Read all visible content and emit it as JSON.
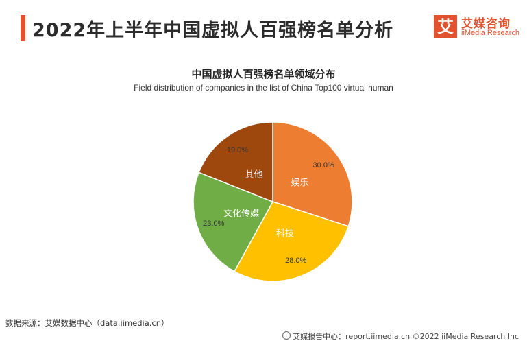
{
  "header": {
    "title": "2022年上半年中国虚拟人百强榜名单分析",
    "accent_color": "#e2522f"
  },
  "logo": {
    "mark": "艾",
    "name_cn": "艾媒咨询",
    "name_en": "iiMedia Research"
  },
  "chart_data": {
    "type": "pie",
    "title": "中国虚拟人百强榜名单领域分布",
    "subtitle": "Field distribution of companies in the list of China Top100 virtual human",
    "slices": [
      {
        "label": "娱乐",
        "value": 30.0,
        "value_label": "30.0%",
        "color": "#ed7d31"
      },
      {
        "label": "科技",
        "value": 28.0,
        "value_label": "28.0%",
        "color": "#ffc000"
      },
      {
        "label": "文化传媒",
        "value": 23.0,
        "value_label": "23.0%",
        "color": "#70ad47"
      },
      {
        "label": "其他",
        "value": 19.0,
        "value_label": "19.0%",
        "color": "#9e480e"
      }
    ],
    "start_angle": "12 o'clock",
    "direction": "clockwise"
  },
  "source": {
    "text": "数据来源：艾媒数据中心（data.iimedia.cn）"
  },
  "footer": {
    "text": "艾媒报告中心：report.iimedia.cn  ©2022 iiMedia Research Inc"
  }
}
